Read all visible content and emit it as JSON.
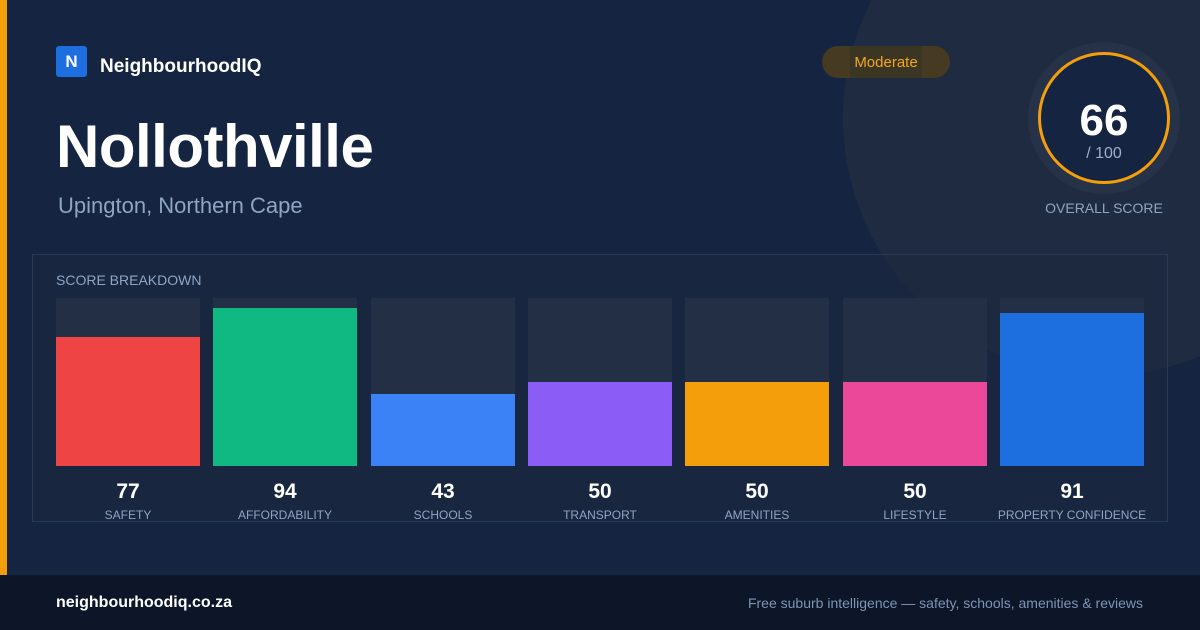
{
  "brand": {
    "logo_letter": "N",
    "name": "NeighbourhoodIQ"
  },
  "suburb": {
    "name": "Nollothville",
    "location": "Upington, Northern Cape"
  },
  "badge": {
    "label": "Moderate"
  },
  "overall": {
    "value": "66",
    "max_label": "/ 100",
    "label": "OVERALL SCORE"
  },
  "breakdown": {
    "title": "SCORE BREAKDOWN"
  },
  "chart_data": {
    "type": "bar",
    "categories": [
      "SAFETY",
      "AFFORDABILITY",
      "SCHOOLS",
      "TRANSPORT",
      "AMENITIES",
      "LIFESTYLE",
      "PROPERTY CONFIDENCE"
    ],
    "values": [
      77,
      94,
      43,
      50,
      50,
      50,
      91
    ],
    "ylim": [
      0,
      100
    ],
    "colors": [
      "#ef4444",
      "#10b981",
      "#3b82f6",
      "#8b5cf6",
      "#f59e0b",
      "#ec4899",
      "#1d6fe0"
    ]
  },
  "footer": {
    "url": "neighbourhoodiq.co.za",
    "tagline": "Free suburb intelligence — safety, schools, amenities & reviews"
  },
  "theme": {
    "accent": "#f59e0b"
  }
}
